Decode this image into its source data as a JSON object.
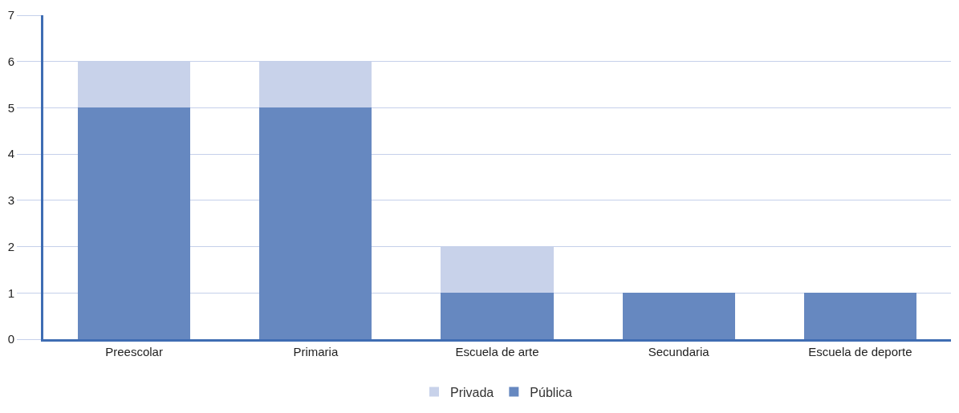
{
  "chart_data": {
    "type": "bar",
    "stacked": true,
    "categories": [
      "Preescolar",
      "Primaria",
      "Escuela de arte",
      "Secundaria",
      "Escuela de deporte"
    ],
    "series": [
      {
        "name": "Pública",
        "color": "#6688c0",
        "values": [
          5,
          5,
          1,
          1,
          1
        ]
      },
      {
        "name": "Privada",
        "color": "#c8d2ea",
        "values": [
          1,
          1,
          1,
          0,
          0
        ]
      }
    ],
    "ylim": [
      0,
      7
    ],
    "yticks": [
      0,
      1,
      2,
      3,
      4,
      5,
      6,
      7
    ],
    "grid": "y",
    "legend": "bottom"
  }
}
